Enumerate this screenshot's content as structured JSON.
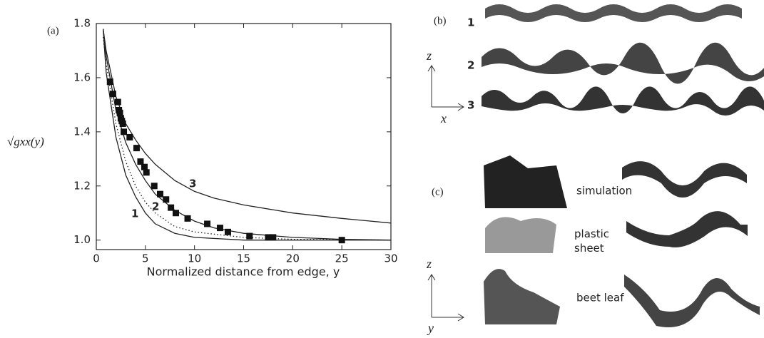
{
  "chart_data": {
    "type": "line",
    "panel_label": "(a)",
    "xlabel": "Normalized distance from edge, y",
    "ylabel": "√gxx(y)",
    "xlim": [
      0,
      30
    ],
    "ylim": [
      0.965,
      1.8
    ],
    "xticks": [
      0,
      5,
      10,
      15,
      20,
      25,
      30
    ],
    "yticks": [
      {
        "value": 1,
        "label": "1.0"
      },
      1.2,
      1.4,
      1.6,
      1.8
    ],
    "series": [
      {
        "name": "3",
        "color": "#222222",
        "style": "solid",
        "x": [
          0.7,
          1,
          2,
          3,
          4,
          5,
          6,
          8,
          10,
          12,
          15,
          20,
          25,
          30
        ],
        "values": [
          1.78,
          1.7,
          1.53,
          1.43,
          1.37,
          1.32,
          1.28,
          1.22,
          1.18,
          1.155,
          1.13,
          1.1,
          1.08,
          1.063
        ]
      },
      {
        "name": "2",
        "color": "#222222",
        "style": "solid",
        "x": [
          0.7,
          1,
          2,
          3,
          4,
          5,
          6,
          8,
          10,
          12,
          15,
          20,
          25,
          30
        ],
        "values": [
          1.78,
          1.68,
          1.48,
          1.36,
          1.28,
          1.22,
          1.17,
          1.11,
          1.07,
          1.045,
          1.025,
          1.01,
          1.003,
          1.0
        ]
      },
      {
        "name": "1",
        "color": "#222222",
        "style": "solid",
        "x": [
          0.7,
          1,
          2,
          3,
          4,
          5,
          6,
          8,
          10,
          15,
          30
        ],
        "values": [
          1.78,
          1.62,
          1.38,
          1.24,
          1.16,
          1.1,
          1.06,
          1.025,
          1.01,
          1.0,
          1.0
        ]
      },
      {
        "color": "#222222",
        "style": "dotted",
        "x": [
          0.7,
          1,
          2,
          3,
          4,
          5,
          6,
          8,
          10,
          15,
          20,
          30
        ],
        "values": [
          1.75,
          1.65,
          1.43,
          1.29,
          1.2,
          1.14,
          1.1,
          1.05,
          1.03,
          1.01,
          1.003,
          1.0
        ]
      },
      {
        "color": "#111111",
        "style": "markers",
        "x": [
          1.4,
          1.7,
          2.2,
          2.3,
          2.4,
          2.5,
          2.6,
          2.7,
          2.8,
          3.4,
          4.1,
          4.5,
          4.9,
          5.1,
          5.9,
          6.5,
          7.1,
          7.6,
          8.1,
          9.3,
          11.3,
          12.6,
          13.4,
          15.6,
          17.5,
          18,
          25
        ],
        "values": [
          1.585,
          1.54,
          1.51,
          1.48,
          1.47,
          1.45,
          1.44,
          1.43,
          1.4,
          1.38,
          1.34,
          1.29,
          1.27,
          1.25,
          1.2,
          1.17,
          1.15,
          1.12,
          1.1,
          1.08,
          1.06,
          1.045,
          1.03,
          1.015,
          1.01,
          1.01,
          1.0
        ]
      }
    ]
  },
  "panel_b": {
    "label": "(b)",
    "rows": [
      "1",
      "2",
      "3"
    ],
    "axis_z": "z",
    "axis_x": "x"
  },
  "panel_c": {
    "label": "(c)",
    "rows": [
      "simulation",
      "plastic sheet",
      "beet leaf"
    ],
    "axis_z": "z",
    "axis_y": "y"
  }
}
